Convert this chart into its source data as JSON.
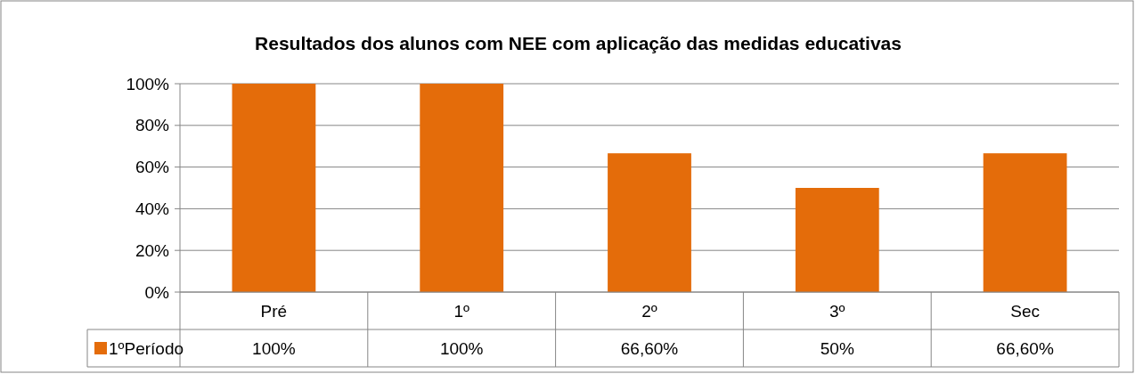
{
  "chart_data": {
    "type": "bar",
    "title": "Resultados dos alunos com NEE com aplicação das medidas educativas",
    "categories": [
      "Pré",
      "1º",
      "2º",
      "3º",
      "Sec"
    ],
    "series": [
      {
        "name": "1ºPeríodo",
        "color": "#e46c0a",
        "values": [
          100,
          100,
          66.6,
          50,
          66.6
        ],
        "value_labels": [
          "100%",
          "100%",
          "66,60%",
          "50%",
          "66,60%"
        ]
      }
    ],
    "ylim": [
      0,
      100
    ],
    "yticks": [
      {
        "value": 0,
        "label": "0%"
      },
      {
        "value": 20,
        "label": "20%"
      },
      {
        "value": 40,
        "label": "40%"
      },
      {
        "value": 60,
        "label": "60%"
      },
      {
        "value": 80,
        "label": "80%"
      },
      {
        "value": 100,
        "label": "100%"
      }
    ],
    "grid": "y",
    "legend": "bottom"
  }
}
